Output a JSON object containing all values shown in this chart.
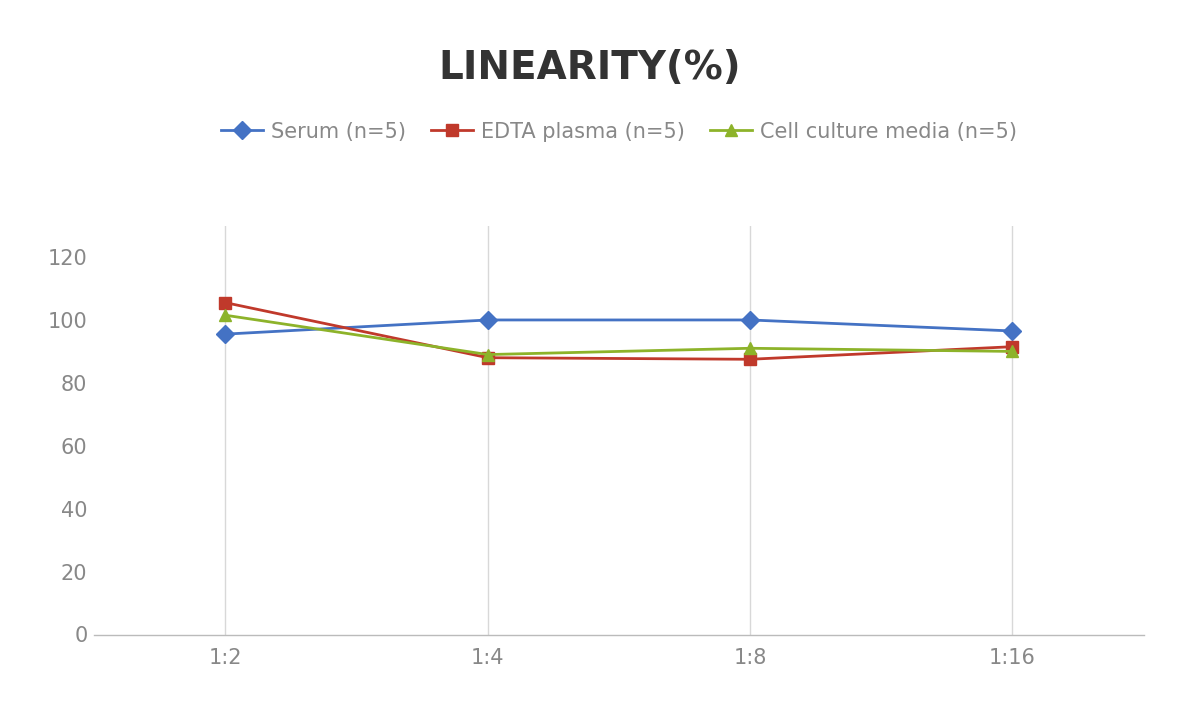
{
  "title": "LINEARITY(%)",
  "title_fontsize": 28,
  "title_fontweight": "bold",
  "x_labels": [
    "1:2",
    "1:4",
    "1:8",
    "1:16"
  ],
  "x_values": [
    0,
    1,
    2,
    3
  ],
  "series": [
    {
      "label": "Serum (n=5)",
      "values": [
        95.5,
        100.0,
        100.0,
        96.5
      ],
      "color": "#4472C4",
      "marker": "D",
      "markersize": 9,
      "linewidth": 2
    },
    {
      "label": "EDTA plasma (n=5)",
      "values": [
        105.5,
        88.0,
        87.5,
        91.5
      ],
      "color": "#C0392B",
      "marker": "s",
      "markersize": 9,
      "linewidth": 2
    },
    {
      "label": "Cell culture media (n=5)",
      "values": [
        101.5,
        89.0,
        91.0,
        90.0
      ],
      "color": "#8DB32A",
      "marker": "^",
      "markersize": 9,
      "linewidth": 2
    }
  ],
  "ylim": [
    0,
    130
  ],
  "yticks": [
    0,
    20,
    40,
    60,
    80,
    100,
    120
  ],
  "grid_color": "#D8D8D8",
  "background_color": "#FFFFFF",
  "legend_fontsize": 15,
  "tick_fontsize": 15,
  "tick_color": "#888888",
  "title_color": "#333333"
}
